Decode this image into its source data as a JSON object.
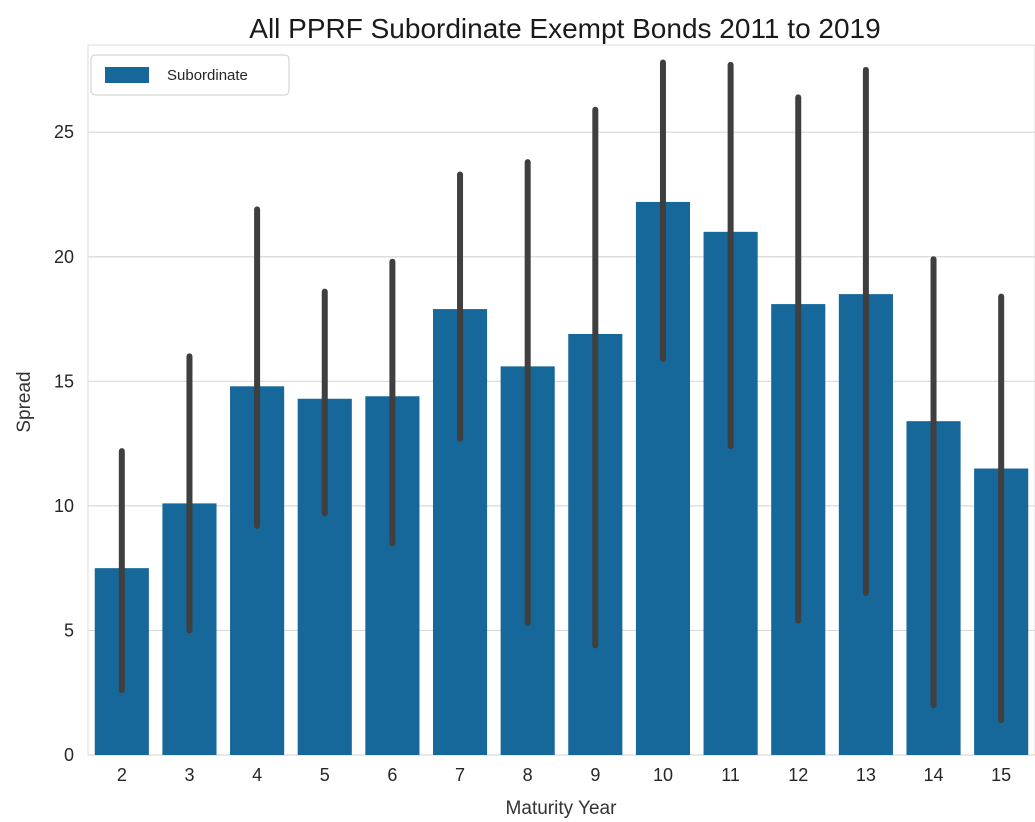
{
  "chart_data": {
    "type": "bar",
    "title": "All PPRF Subordinate Exempt  Bonds 2011 to 2019",
    "xlabel": "Maturity Year",
    "ylabel": "Spread",
    "categories": [
      "2",
      "3",
      "4",
      "5",
      "6",
      "7",
      "8",
      "9",
      "10",
      "11",
      "12",
      "13",
      "14",
      "15"
    ],
    "series": [
      {
        "name": "Subordinate",
        "color": "#16679a",
        "values": [
          7.5,
          10.1,
          14.8,
          14.3,
          14.4,
          17.9,
          15.6,
          16.9,
          22.2,
          21.0,
          18.1,
          18.5,
          13.4,
          11.5
        ],
        "ci_low": [
          2.6,
          5.0,
          9.2,
          9.7,
          8.5,
          12.7,
          5.3,
          4.4,
          15.9,
          12.4,
          5.4,
          6.5,
          2.0,
          1.4
        ],
        "ci_high": [
          12.2,
          16.0,
          21.9,
          18.6,
          19.8,
          23.3,
          23.8,
          25.9,
          27.8,
          27.7,
          26.4,
          27.5,
          19.9,
          18.4
        ]
      }
    ],
    "ylim": [
      0,
      28.5
    ],
    "yticks": [
      0,
      5,
      10,
      15,
      20,
      25
    ],
    "grid": true,
    "legend_position": "top-left",
    "errorbar_color": "#3f3f3f"
  }
}
